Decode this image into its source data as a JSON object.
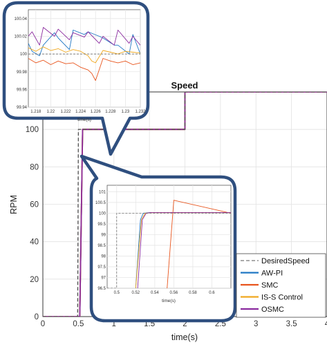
{
  "chart_data": [
    {
      "type": "line",
      "title": "Speed",
      "xlabel": "time(s)",
      "ylabel": "RPM",
      "xlim": [
        0,
        4
      ],
      "ylim": [
        0,
        120
      ],
      "xticks": [
        "0",
        "0.5",
        "1",
        "1.5",
        "2",
        "2.5",
        "3",
        "3.5",
        "4"
      ],
      "yticks": [
        "0",
        "20",
        "40",
        "60",
        "80",
        "100",
        "120"
      ],
      "grid": true,
      "legend_position": "bottom-right",
      "series": [
        {
          "name": "DesiredSpeed",
          "color": "#555555",
          "dash": true,
          "x": [
            0,
            0.49,
            0.5,
            2.0,
            2.0,
            4
          ],
          "y": [
            0,
            0,
            100,
            100,
            120,
            120
          ]
        },
        {
          "name": "AW-PI",
          "color": "#1f77c4",
          "x": [
            0,
            0.52,
            0.56,
            1.0,
            2.0,
            2.0,
            4
          ],
          "y": [
            0,
            0,
            100,
            100,
            100,
            120,
            120
          ]
        },
        {
          "name": "SMC",
          "color": "#e8541c",
          "x": [
            0,
            0.52,
            0.56,
            1.0,
            2.0,
            2.0,
            4
          ],
          "y": [
            0,
            0,
            100,
            100,
            100,
            120,
            120
          ]
        },
        {
          "name": "IS-S Control",
          "color": "#f0a81e",
          "x": [
            0,
            0.52,
            0.56,
            1.0,
            2.0,
            2.0,
            4
          ],
          "y": [
            0,
            0,
            100,
            100,
            100,
            120,
            120
          ]
        },
        {
          "name": "OSMC",
          "color": "#8a2a9e",
          "x": [
            0,
            0.52,
            0.56,
            1.0,
            2.0,
            2.0,
            4
          ],
          "y": [
            0,
            0,
            100,
            100,
            100,
            120,
            120
          ]
        }
      ]
    },
    {
      "type": "line",
      "title": "",
      "xlabel": "time(s)",
      "xlim": [
        1.217,
        1.232
      ],
      "ylim": [
        99.94,
        100.05
      ],
      "xticks": [
        "1.218",
        "1.22",
        "1.222",
        "1.224",
        "1.226",
        "1.228",
        "1.23",
        "1.232"
      ],
      "yticks": [
        "99.94",
        "99.96",
        "99.98",
        "100",
        "100.02",
        "100.04"
      ],
      "grid": true,
      "series": [
        {
          "name": "DesiredSpeed",
          "color": "#555555",
          "dash": true,
          "x": [
            1.217,
            1.232
          ],
          "y": [
            100,
            100
          ]
        },
        {
          "name": "AW-PI",
          "color": "#1f77c4",
          "x": [
            1.217,
            1.2175,
            1.2185,
            1.219,
            1.2205,
            1.221,
            1.2225,
            1.223,
            1.2245,
            1.225,
            1.2265,
            1.227,
            1.2285,
            1.229,
            1.2305,
            1.231,
            1.232
          ],
          "y": [
            100.012,
            100.003,
            99.998,
            100.01,
            100.024,
            100.018,
            100.005,
            100.027,
            100.022,
            100.025,
            100.02,
            100.018,
            100.01,
            100.01,
            100.0,
            100.022,
            100.0
          ]
        },
        {
          "name": "SMC",
          "color": "#e8541c",
          "x": [
            1.217,
            1.218,
            1.219,
            1.22,
            1.221,
            1.222,
            1.223,
            1.224,
            1.225,
            1.2255,
            1.226,
            1.227,
            1.228,
            1.229,
            1.23,
            1.231,
            1.232
          ],
          "y": [
            99.995,
            99.99,
            99.993,
            99.988,
            99.992,
            99.989,
            99.99,
            99.985,
            99.982,
            99.978,
            99.97,
            99.995,
            99.992,
            99.99,
            99.992,
            99.988,
            99.99
          ]
        },
        {
          "name": "IS-S Control",
          "color": "#f0a81e",
          "x": [
            1.217,
            1.218,
            1.219,
            1.22,
            1.221,
            1.222,
            1.223,
            1.224,
            1.225,
            1.2255,
            1.226,
            1.227,
            1.228,
            1.229,
            1.23,
            1.231,
            1.232
          ],
          "y": [
            100.007,
            100.003,
            100.008,
            100.004,
            100.006,
            100.002,
            100.005,
            100.003,
            99.998,
            99.992,
            99.99,
            100.004,
            100.002,
            100.0,
            100.003,
            100.002,
            100.001
          ]
        },
        {
          "name": "OSMC",
          "color": "#8a2a9e",
          "x": [
            1.217,
            1.2175,
            1.2185,
            1.219,
            1.2205,
            1.221,
            1.2225,
            1.223,
            1.2245,
            1.225,
            1.2265,
            1.227,
            1.2285,
            1.229,
            1.2305,
            1.231,
            1.232
          ],
          "y": [
            100.02,
            100.025,
            100.01,
            100.03,
            100.02,
            100.028,
            100.016,
            100.024,
            100.019,
            100.025,
            100.012,
            100.02,
            100.01,
            100.027,
            100.012,
            100.02,
            100.01
          ]
        }
      ]
    },
    {
      "type": "line",
      "title": "",
      "xlabel": "time(s)",
      "xlim": [
        0.49,
        0.62
      ],
      "ylim": [
        96.5,
        101.3
      ],
      "xticks": [
        "0.5",
        "0.52",
        "0.54",
        "0.56",
        "0.58",
        "0.6"
      ],
      "yticks": [
        "96.5",
        "97",
        "97.5",
        "98",
        "98.5",
        "99",
        "99.5",
        "100",
        "100.5",
        "101"
      ],
      "grid": true,
      "series": [
        {
          "name": "DesiredSpeed",
          "color": "#555555",
          "dash": true,
          "x": [
            0.49,
            0.5,
            0.5,
            0.62
          ],
          "y": [
            96.5,
            96.5,
            100,
            100
          ]
        },
        {
          "name": "AW-PI",
          "color": "#1f77c4",
          "x": [
            0.52,
            0.525,
            0.528,
            0.535,
            0.62
          ],
          "y": [
            96.5,
            99.7,
            100.0,
            100.03,
            100.02
          ]
        },
        {
          "name": "SMC",
          "color": "#e8541c",
          "x": [
            0.553,
            0.56,
            0.62
          ],
          "y": [
            96.5,
            100.6,
            100.0
          ]
        },
        {
          "name": "IS-S Control",
          "color": "#f0a81e",
          "x": [
            0.52,
            0.526,
            0.53,
            0.535,
            0.62
          ],
          "y": [
            96.5,
            99.7,
            100.0,
            100.02,
            100.02
          ]
        },
        {
          "name": "OSMC",
          "color": "#8a2a9e",
          "x": [
            0.522,
            0.527,
            0.531,
            0.536,
            0.62
          ],
          "y": [
            96.5,
            99.7,
            100.0,
            100.03,
            100.03
          ]
        }
      ]
    }
  ]
}
